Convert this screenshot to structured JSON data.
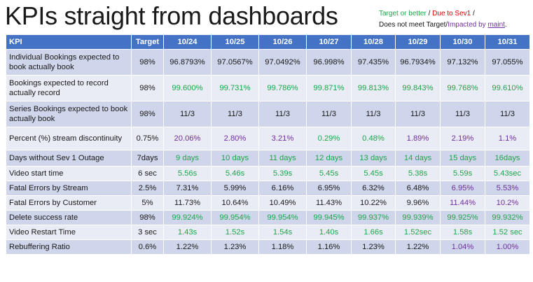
{
  "slide": {
    "title": "KPIs straight from dashboards",
    "legend": {
      "line1_green": "Target or better",
      "line1_sep": " / ",
      "line1_red": "Due to Sev1",
      "line1_end": " /",
      "line2_black": "Does not meet Target/",
      "line2_purple": "Impacted by ",
      "line2_maint": "maint",
      "line2_end": "."
    }
  },
  "colors": {
    "header_blue": "#4472c4",
    "row_dark": "#cfd5ea",
    "row_light": "#e9ebf5",
    "green": "#1fa64a",
    "red": "#e00000",
    "purple": "#7030a0"
  },
  "table": {
    "headers": [
      "KPI",
      "Target",
      "10/24",
      "10/25",
      "10/26",
      "10/27",
      "10/28",
      "10/29",
      "10/30",
      "10/31"
    ],
    "rows": [
      {
        "kpi": "Individual Bookings expected to book actually book",
        "target": "98%",
        "values": [
          "96.8793%",
          "97.0567%",
          "97.0492%",
          "96.998%",
          "97.435%",
          "96.7934%",
          "97.132%",
          "97.055%"
        ],
        "status": [
          "n",
          "n",
          "n",
          "n",
          "n",
          "n",
          "n",
          "n"
        ]
      },
      {
        "kpi": "Bookings expected to record actually record",
        "target": "98%",
        "values": [
          "99.600%",
          "99.731%",
          "99.786%",
          "99.871%",
          "99.813%",
          "99.843%",
          "99.768%",
          "99.610%"
        ],
        "status": [
          "g",
          "g",
          "g",
          "g",
          "g",
          "g",
          "g",
          "g"
        ]
      },
      {
        "kpi": "Series Bookings expected to book actually book",
        "target": "98%",
        "values": [
          "11/3",
          "11/3",
          "11/3",
          "11/3",
          "11/3",
          "11/3",
          "11/3",
          "11/3"
        ],
        "status": [
          "n",
          "n",
          "n",
          "n",
          "n",
          "n",
          "n",
          "n"
        ]
      },
      {
        "kpi": "Percent (%) stream discontinuity",
        "target": "0.75%",
        "values": [
          "20.06%",
          "2.80%",
          "3.21%",
          "0.29%",
          "0.48%",
          "1.89%",
          "2.19%",
          "1.1%"
        ],
        "status": [
          "p",
          "p",
          "p",
          "g",
          "g",
          "p",
          "p",
          "p"
        ]
      },
      {
        "kpi": "Days without Sev 1 Outage",
        "target": "7days",
        "values": [
          "9 days",
          "10 days",
          "11 days",
          "12 days",
          "13 days",
          "14 days",
          "15 days",
          "16days"
        ],
        "status": [
          "g",
          "g",
          "g",
          "g",
          "g",
          "g",
          "g",
          "g"
        ]
      },
      {
        "kpi": "Video start time",
        "target": "6 sec",
        "values": [
          "5.56s",
          "5.46s",
          "5.39s",
          "5.45s",
          "5.45s",
          "5.38s",
          "5.59s",
          "5.43sec"
        ],
        "status": [
          "g",
          "g",
          "g",
          "g",
          "g",
          "g",
          "g",
          "g"
        ]
      },
      {
        "kpi": "Fatal Errors by Stream",
        "target": "2.5%",
        "values": [
          "7.31%",
          "5.99%",
          "6.16%",
          "6.95%",
          "6.32%",
          "6.48%",
          "6.95%",
          "5.53%"
        ],
        "status": [
          "n",
          "n",
          "n",
          "n",
          "n",
          "n",
          "p",
          "p"
        ]
      },
      {
        "kpi": "Fatal Errors by Customer",
        "target": "5%",
        "values": [
          "11.73%",
          "10.64%",
          "10.49%",
          "11.43%",
          "10.22%",
          "9.96%",
          "11.44%",
          "10.2%"
        ],
        "status": [
          "n",
          "n",
          "n",
          "n",
          "n",
          "n",
          "p",
          "p"
        ]
      },
      {
        "kpi": "Delete success rate",
        "target": "98%",
        "values": [
          "99.924%",
          "99.954%",
          "99.954%",
          "99.945%",
          "99.937%",
          "99.939%",
          "99.925%",
          "99.932%"
        ],
        "status": [
          "g",
          "g",
          "g",
          "g",
          "g",
          "g",
          "g",
          "g"
        ]
      },
      {
        "kpi": "Video Restart Time",
        "target": "3 sec",
        "values": [
          "1.43s",
          "1.52s",
          "1.54s",
          "1.40s",
          "1.66s",
          "1.52sec",
          "1.58s",
          "1.52 sec"
        ],
        "status": [
          "g",
          "g",
          "g",
          "g",
          "g",
          "g",
          "g",
          "g"
        ]
      },
      {
        "kpi": "Rebuffering Ratio",
        "target": "0.6%",
        "values": [
          "1.22%",
          "1.23%",
          "1.18%",
          "1.16%",
          "1.23%",
          "1.22%",
          "1.04%",
          "1.00%"
        ],
        "status": [
          "n",
          "n",
          "n",
          "n",
          "n",
          "n",
          "p",
          "p"
        ]
      }
    ]
  }
}
